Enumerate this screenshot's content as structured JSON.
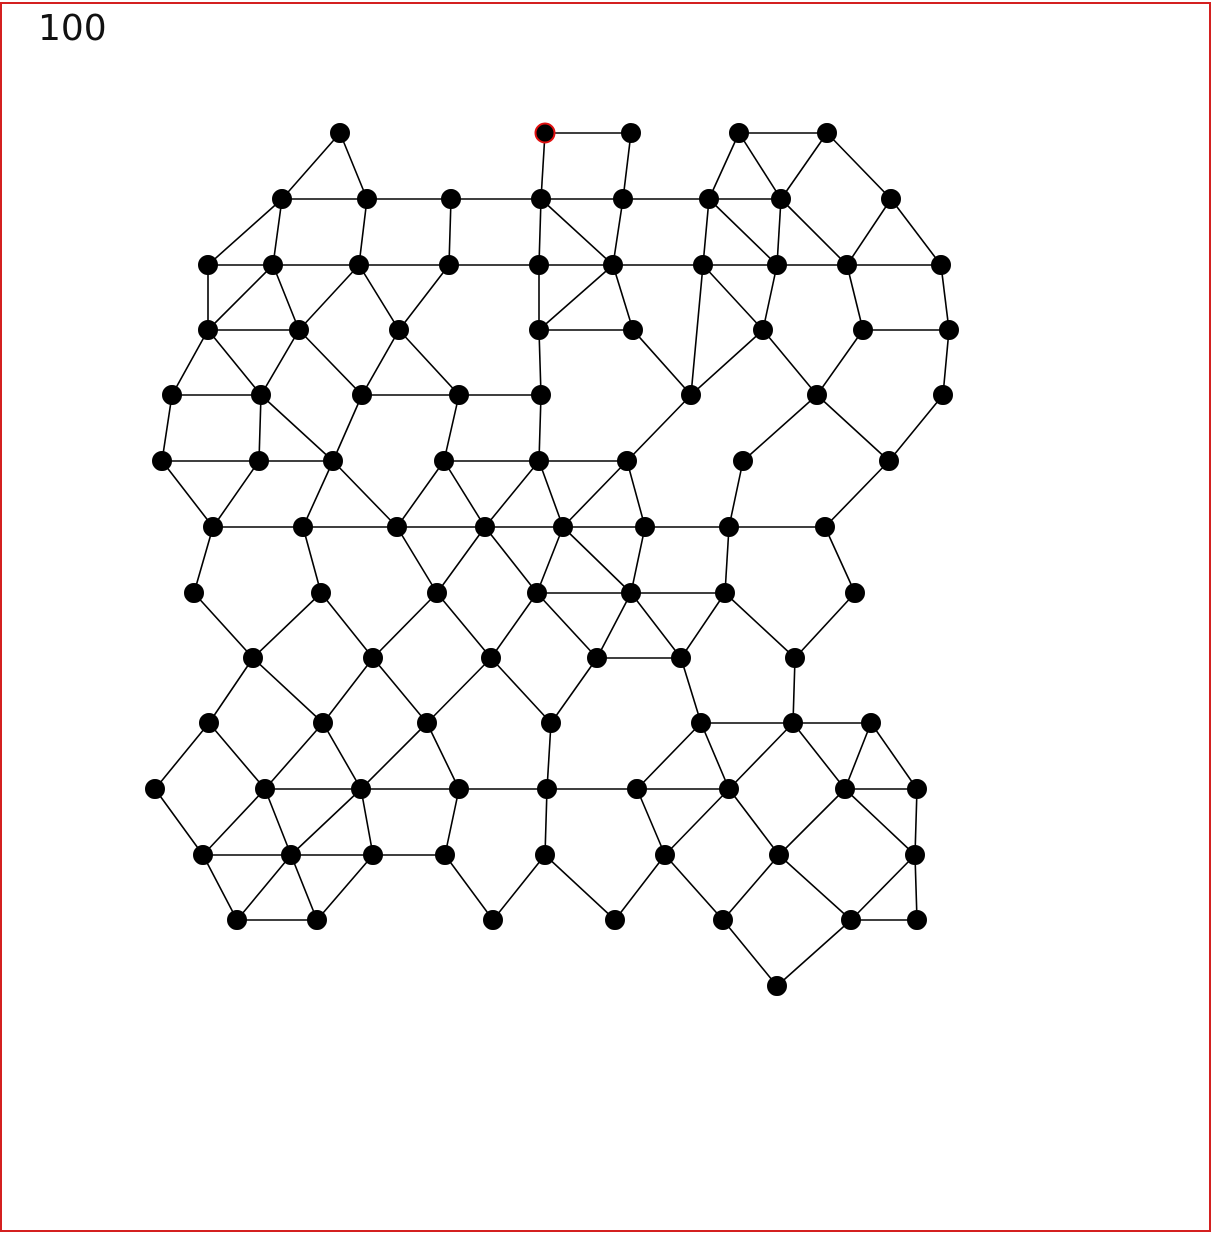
{
  "counter": 100
}
